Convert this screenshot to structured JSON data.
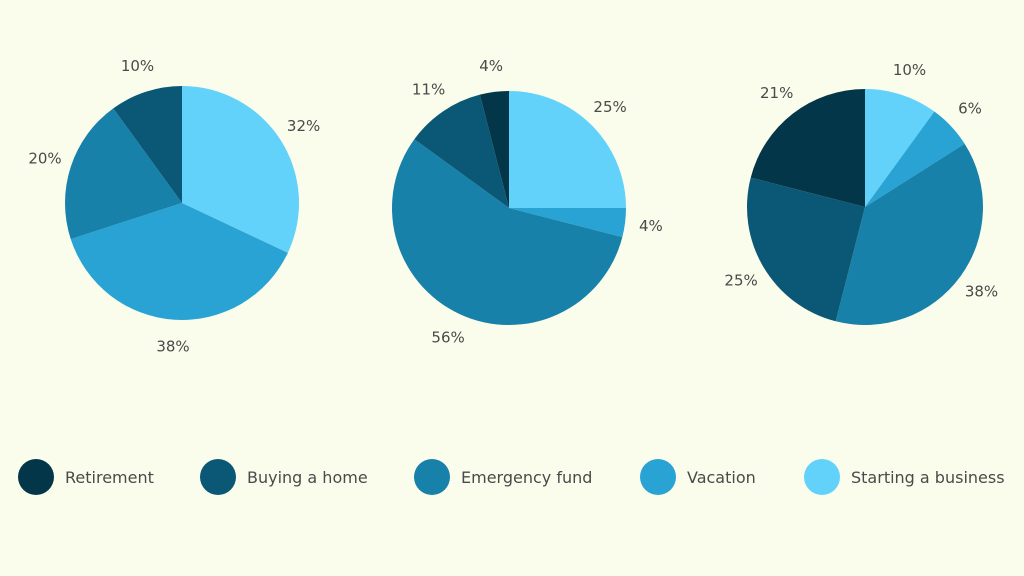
{
  "colors": {
    "Retirement": "#04364a",
    "Buying a home": "#0a5876",
    "Emergency fund": "#1781aa",
    "Vacation": "#28a3d3",
    "Starting a business": "#62d2fa"
  },
  "legend": {
    "items": [
      "Retirement",
      "Buying a home",
      "Emergency fund",
      "Vacation",
      "Starting a business"
    ]
  },
  "chart_data": [
    {
      "type": "pie",
      "slices": [
        {
          "category": "Starting a business",
          "value": 32,
          "label": "32%"
        },
        {
          "category": "Vacation",
          "value": 38,
          "label": "38%"
        },
        {
          "category": "Emergency fund",
          "value": 20,
          "label": "20%"
        },
        {
          "category": "Buying a home",
          "value": 10,
          "label": "10%"
        }
      ]
    },
    {
      "type": "pie",
      "slices": [
        {
          "category": "Starting a business",
          "value": 25,
          "label": "25%"
        },
        {
          "category": "Vacation",
          "value": 4,
          "label": "4%"
        },
        {
          "category": "Emergency fund",
          "value": 56,
          "label": "56%"
        },
        {
          "category": "Buying a home",
          "value": 11,
          "label": "11%"
        },
        {
          "category": "Retirement",
          "value": 4,
          "label": "4%"
        }
      ]
    },
    {
      "type": "pie",
      "slices": [
        {
          "category": "Starting a business",
          "value": 10,
          "label": "10%"
        },
        {
          "category": "Vacation",
          "value": 6,
          "label": "6%"
        },
        {
          "category": "Emergency fund",
          "value": 38,
          "label": "38%"
        },
        {
          "category": "Buying a home",
          "value": 25,
          "label": "25%"
        },
        {
          "category": "Retirement",
          "value": 21,
          "label": "21%"
        }
      ]
    }
  ]
}
